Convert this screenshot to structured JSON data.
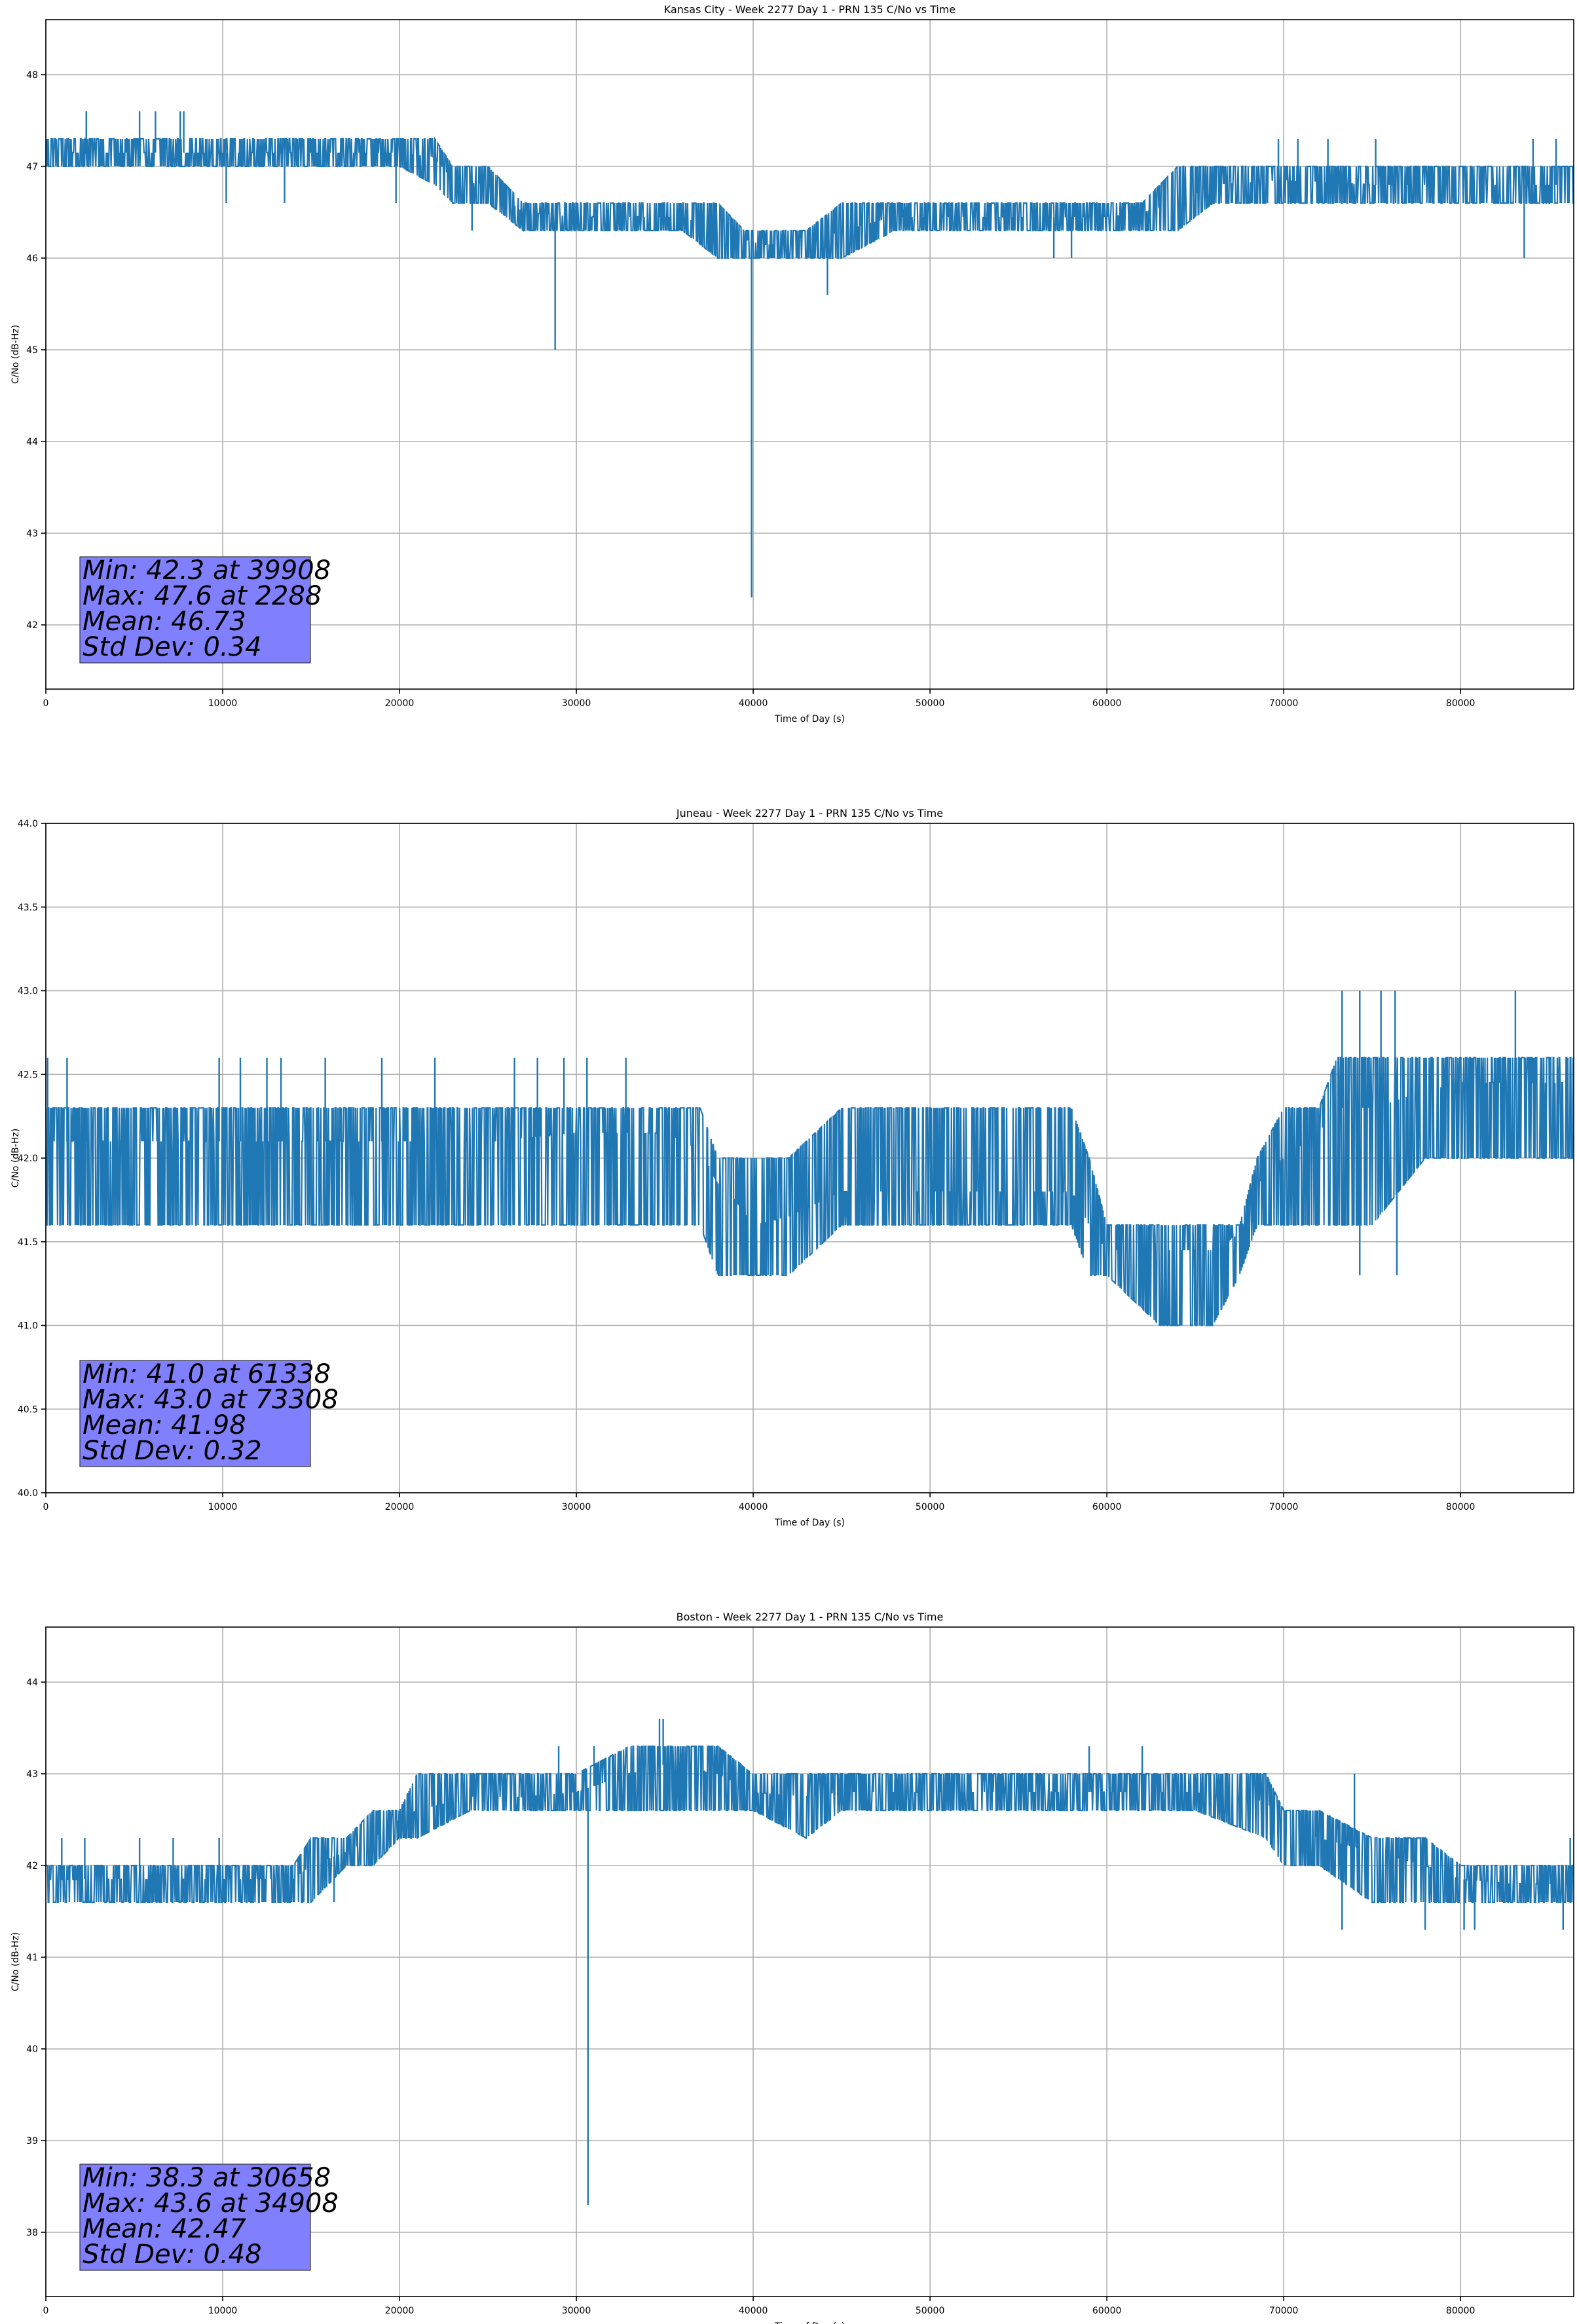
{
  "chart_data": [
    {
      "type": "line",
      "title": "Kansas City - Week 2277 Day 1 - PRN 135 C/No vs Time",
      "xlabel": "Time of Day (s)",
      "ylabel": "C/No (dB-Hz)",
      "xlim": [
        0,
        86400
      ],
      "ylim": [
        41.3,
        48.6
      ],
      "xticks": [
        0,
        10000,
        20000,
        30000,
        40000,
        50000,
        60000,
        70000,
        80000
      ],
      "yticks": [
        42,
        43,
        44,
        45,
        46,
        47,
        48
      ],
      "grid": true,
      "series_color": "#1f77b4",
      "series": [
        {
          "x": [
            0,
            5000,
            10000,
            15000,
            20000,
            22000,
            23000,
            25000,
            27000,
            30000,
            33000,
            36000,
            38000,
            39500,
            40500,
            43000,
            45000,
            48000,
            50000,
            55000,
            60000,
            62000,
            64000,
            66000,
            70000,
            75000,
            80000,
            85000,
            86400
          ],
          "y": [
            47.15,
            47.15,
            47.15,
            47.15,
            47.15,
            47.1,
            46.85,
            46.8,
            46.5,
            46.45,
            46.45,
            46.45,
            46.3,
            46.2,
            46.15,
            46.15,
            46.3,
            46.45,
            46.45,
            46.45,
            46.45,
            46.5,
            46.6,
            46.8,
            46.85,
            46.8,
            46.8,
            46.8,
            46.8
          ],
          "lo": [
            47.0,
            47.0,
            47.0,
            47.0,
            47.0,
            46.8,
            46.6,
            46.6,
            46.3,
            46.3,
            46.3,
            46.3,
            46.0,
            46.0,
            46.0,
            46.0,
            46.0,
            46.3,
            46.3,
            46.3,
            46.3,
            46.3,
            46.3,
            46.6,
            46.6,
            46.6,
            46.6,
            46.6,
            46.6
          ],
          "hi": [
            47.3,
            47.3,
            47.3,
            47.3,
            47.3,
            47.3,
            47.0,
            47.0,
            46.6,
            46.6,
            46.6,
            46.6,
            46.6,
            46.3,
            46.3,
            46.3,
            46.6,
            46.6,
            46.6,
            46.6,
            46.6,
            46.6,
            47.0,
            47.0,
            47.0,
            47.0,
            47.0,
            47.0,
            47.0
          ],
          "outliers": [
            [
              2288,
              47.6
            ],
            [
              5300,
              47.6
            ],
            [
              6200,
              47.6
            ],
            [
              7600,
              47.6
            ],
            [
              7800,
              47.6
            ],
            [
              10200,
              46.6
            ],
            [
              13500,
              46.6
            ],
            [
              19800,
              46.6
            ],
            [
              24100,
              46.3
            ],
            [
              28800,
              45.0
            ],
            [
              39908,
              42.3
            ],
            [
              44200,
              45.6
            ],
            [
              57000,
              46.0
            ],
            [
              58000,
              46.0
            ],
            [
              69700,
              47.3
            ],
            [
              70800,
              47.3
            ],
            [
              72500,
              47.3
            ],
            [
              75200,
              47.3
            ],
            [
              84100,
              47.3
            ],
            [
              85400,
              47.3
            ],
            [
              83600,
              46.0
            ]
          ]
        }
      ],
      "annotation": {
        "lines": [
          "Min: 42.3 at 39908",
          "Max: 47.6 at 2288",
          "Mean: 46.73",
          "Std Dev: 0.34"
        ],
        "box_color": "#8080ff"
      }
    },
    {
      "type": "line",
      "title": "Juneau - Week 2277 Day 1 - PRN 135 C/No vs Time",
      "xlabel": "Time of Day (s)",
      "ylabel": "C/No (dB-Hz)",
      "xlim": [
        0,
        86400
      ],
      "ylim": [
        40.0,
        44.0
      ],
      "xticks": [
        0,
        10000,
        20000,
        30000,
        40000,
        50000,
        60000,
        70000,
        80000
      ],
      "yticks": [
        40.0,
        40.5,
        41.0,
        41.5,
        42.0,
        42.5,
        43.0,
        43.5,
        44.0
      ],
      "grid": true,
      "series_color": "#1f77b4",
      "series": [
        {
          "x": [
            0,
            5000,
            10000,
            15000,
            20000,
            25000,
            30000,
            35000,
            37000,
            38000,
            39000,
            40000,
            42000,
            45000,
            50000,
            55000,
            58000,
            59000,
            60000,
            63000,
            66000,
            67500,
            68500,
            70000,
            72000,
            73000,
            75000,
            78000,
            80000,
            85000,
            86400
          ],
          "y": [
            42.1,
            42.1,
            42.1,
            42.1,
            42.1,
            42.1,
            42.15,
            42.15,
            42.05,
            41.85,
            41.75,
            41.6,
            41.65,
            41.8,
            41.8,
            41.8,
            41.8,
            41.6,
            41.45,
            41.45,
            41.45,
            41.55,
            41.85,
            42.0,
            42.15,
            42.3,
            42.3,
            42.4,
            42.45,
            42.45,
            42.45
          ],
          "lo": [
            41.6,
            41.6,
            41.6,
            41.6,
            41.6,
            41.6,
            41.6,
            41.6,
            41.6,
            41.3,
            41.3,
            41.3,
            41.3,
            41.6,
            41.6,
            41.6,
            41.6,
            41.3,
            41.3,
            41.0,
            41.0,
            41.3,
            41.6,
            41.6,
            41.6,
            41.6,
            41.6,
            42.0,
            42.0,
            42.0,
            42.0
          ],
          "hi": [
            42.3,
            42.3,
            42.3,
            42.3,
            42.3,
            42.3,
            42.3,
            42.3,
            42.3,
            42.0,
            42.0,
            42.0,
            42.0,
            42.3,
            42.3,
            42.3,
            42.3,
            42.0,
            41.6,
            41.6,
            41.6,
            41.6,
            42.0,
            42.3,
            42.3,
            42.6,
            42.6,
            42.6,
            42.6,
            42.6,
            42.6
          ],
          "outliers": [
            [
              100,
              42.6
            ],
            [
              1200,
              42.6
            ],
            [
              9800,
              42.6
            ],
            [
              11000,
              42.6
            ],
            [
              12500,
              42.6
            ],
            [
              13300,
              42.6
            ],
            [
              15800,
              42.6
            ],
            [
              19000,
              42.6
            ],
            [
              22000,
              42.6
            ],
            [
              26500,
              42.6
            ],
            [
              27800,
              42.6
            ],
            [
              29300,
              42.6
            ],
            [
              30600,
              42.6
            ],
            [
              32800,
              42.6
            ],
            [
              73300,
              43.0
            ],
            [
              74300,
              43.0
            ],
            [
              75500,
              43.0
            ],
            [
              76300,
              43.0
            ],
            [
              83100,
              43.0
            ],
            [
              74300,
              41.3
            ],
            [
              76400,
              41.3
            ]
          ]
        }
      ],
      "annotation": {
        "lines": [
          "Min: 41.0 at 61338",
          "Max: 43.0 at 73308",
          "Mean: 41.98",
          "Std Dev: 0.32"
        ],
        "box_color": "#8080ff"
      }
    },
    {
      "type": "line",
      "title": "Boston - Week 2277 Day 1 - PRN 135 C/No vs Time",
      "xlabel": "Time of Day (s)",
      "ylabel": "C/No (dB-Hz)",
      "xlim": [
        0,
        86400
      ],
      "ylim": [
        37.3,
        44.6
      ],
      "xticks": [
        0,
        10000,
        20000,
        30000,
        40000,
        50000,
        60000,
        70000,
        80000
      ],
      "yticks": [
        38,
        39,
        40,
        41,
        42,
        43,
        44
      ],
      "grid": true,
      "series_color": "#1f77b4",
      "series": [
        {
          "x": [
            0,
            5000,
            10000,
            14000,
            15000,
            17000,
            18500,
            20000,
            21000,
            24000,
            27000,
            30000,
            33000,
            35000,
            38000,
            40000,
            43000,
            45000,
            50000,
            55000,
            60000,
            65000,
            69000,
            70000,
            72000,
            75000,
            78000,
            80000,
            83000,
            86400
          ],
          "y": [
            41.85,
            41.85,
            41.85,
            41.85,
            42.0,
            42.15,
            42.3,
            42.5,
            42.6,
            42.75,
            42.75,
            42.8,
            43.0,
            43.1,
            43.0,
            42.8,
            42.75,
            42.8,
            42.8,
            42.8,
            42.8,
            42.8,
            42.7,
            42.45,
            42.3,
            42.15,
            42.0,
            41.85,
            41.8,
            41.8
          ],
          "lo": [
            41.6,
            41.6,
            41.6,
            41.6,
            41.6,
            42.0,
            42.0,
            42.3,
            42.3,
            42.6,
            42.6,
            42.6,
            42.6,
            42.6,
            42.6,
            42.6,
            42.3,
            42.6,
            42.6,
            42.6,
            42.6,
            42.6,
            42.3,
            42.0,
            42.0,
            41.6,
            41.6,
            41.6,
            41.6,
            41.6
          ],
          "hi": [
            42.0,
            42.0,
            42.0,
            42.0,
            42.3,
            42.3,
            42.6,
            42.6,
            43.0,
            43.0,
            43.0,
            43.0,
            43.3,
            43.3,
            43.3,
            43.0,
            43.0,
            43.0,
            43.0,
            43.0,
            43.0,
            43.0,
            43.0,
            42.6,
            42.6,
            42.3,
            42.3,
            42.0,
            42.0,
            42.0
          ],
          "outliers": [
            [
              900,
              42.3
            ],
            [
              2200,
              42.3
            ],
            [
              5300,
              42.3
            ],
            [
              7200,
              42.3
            ],
            [
              9800,
              42.3
            ],
            [
              16300,
              41.6
            ],
            [
              29000,
              43.3
            ],
            [
              31000,
              43.3
            ],
            [
              34700,
              43.6
            ],
            [
              34908,
              43.6
            ],
            [
              30658,
              38.3
            ],
            [
              59000,
              43.3
            ],
            [
              62000,
              43.3
            ],
            [
              73300,
              41.3
            ],
            [
              78000,
              41.3
            ],
            [
              80200,
              41.3
            ],
            [
              80800,
              41.3
            ],
            [
              85800,
              41.3
            ],
            [
              86200,
              42.3
            ],
            [
              74000,
              43.0
            ]
          ]
        }
      ],
      "annotation": {
        "lines": [
          "Min: 38.3 at 30658",
          "Max: 43.6 at 34908",
          "Mean: 42.47",
          "Std Dev: 0.48"
        ],
        "box_color": "#8080ff"
      }
    }
  ]
}
